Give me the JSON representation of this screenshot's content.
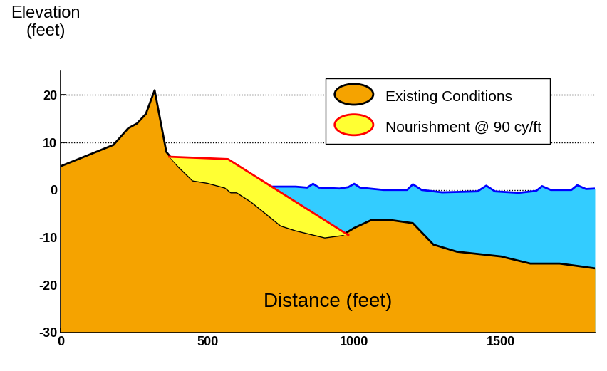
{
  "chart_data": {
    "type": "area",
    "x_label": "Distance (feet)",
    "y_label": "Elevation\n(feet)",
    "xlim": [
      0,
      1820
    ],
    "ylim": [
      -30,
      25
    ],
    "xticks": [
      0,
      500,
      1000,
      1500
    ],
    "yticks": [
      -30,
      -20,
      -10,
      0,
      10,
      20
    ],
    "grid": true,
    "legend": "upper right",
    "series": [
      {
        "name": "Existing Conditions",
        "color": "#f5a300",
        "x": [
          0,
          180,
          230,
          260,
          290,
          320,
          360,
          400,
          450,
          500,
          560,
          580,
          600,
          650,
          700,
          750,
          800,
          900,
          960,
          1000,
          1060,
          1120,
          1200,
          1270,
          1350,
          1500,
          1600,
          1700,
          1820
        ],
        "values": [
          5,
          9.5,
          13,
          14,
          16,
          21,
          8,
          5,
          2,
          1.5,
          0.5,
          -0.5,
          -0.5,
          -2.5,
          -5,
          -7.5,
          -8.5,
          -10,
          -9.5,
          -8,
          -6.3,
          -6.3,
          -7,
          -11.5,
          -13,
          -14,
          -15.5,
          -15.5,
          -16.5
        ]
      },
      {
        "name": "Nourishment @ 90 cy/ft",
        "color": "#ffff33",
        "x": [
          370,
          570,
          980
        ],
        "values": [
          7,
          6.5,
          -9.5
        ]
      },
      {
        "color": "#33ccff",
        "x": [
          720,
          800,
          840,
          860,
          880,
          950,
          980,
          1000,
          1020,
          1100,
          1180,
          1200,
          1230,
          1300,
          1420,
          1450,
          1480,
          1560,
          1620,
          1640,
          1670,
          1740,
          1760,
          1790,
          1820
        ],
        "values": [
          0.7,
          0.7,
          0.5,
          1.3,
          0.5,
          0.3,
          0.6,
          1.3,
          0.5,
          0,
          0,
          1.2,
          0,
          -0.5,
          -0.3,
          0.9,
          -0.3,
          -0.6,
          -0.2,
          0.8,
          0,
          0,
          1.0,
          0.2,
          0.3
        ]
      }
    ]
  }
}
